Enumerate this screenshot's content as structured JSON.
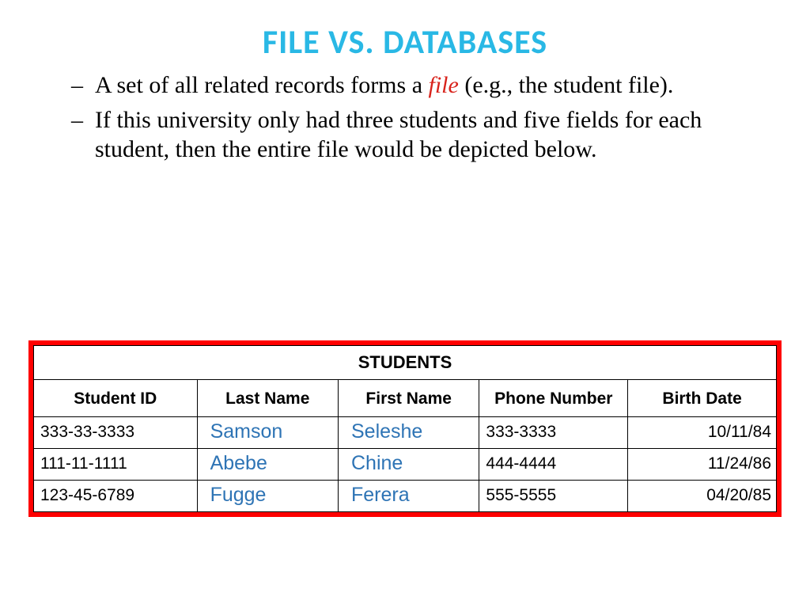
{
  "colors": {
    "title": "#29b8e5",
    "emphasis": "#d8231c",
    "table_border": "#ff0000",
    "name_text": "#2e74b5",
    "body_text": "#000000"
  },
  "title": "FILE VS. DATABASES",
  "bullets": {
    "b1_pre": "A set of all related records forms a ",
    "b1_emph": "file",
    "b1_post": " (e.g., the student file).",
    "b2": "If this university only had three students and five fields for each student, then the entire file would be depicted below."
  },
  "table": {
    "caption": "STUDENTS",
    "columns": [
      "Student ID",
      "Last Name",
      "First Name",
      "Phone Number",
      "Birth Date"
    ],
    "col_widths_pct": [
      22,
      19,
      19,
      20,
      20
    ],
    "rows": [
      {
        "id": "333-33-3333",
        "last": "Samson",
        "first": "Seleshe",
        "phone": "333-3333",
        "birth": "10/11/84"
      },
      {
        "id": "111-11-1111",
        "last": "Abebe",
        "first": "Chine",
        "phone": "444-4444",
        "birth": "11/24/86"
      },
      {
        "id": "123-45-6789",
        "last": "Fugge",
        "first": "Ferera",
        "phone": "555-5555",
        "birth": "04/20/85"
      }
    ]
  }
}
